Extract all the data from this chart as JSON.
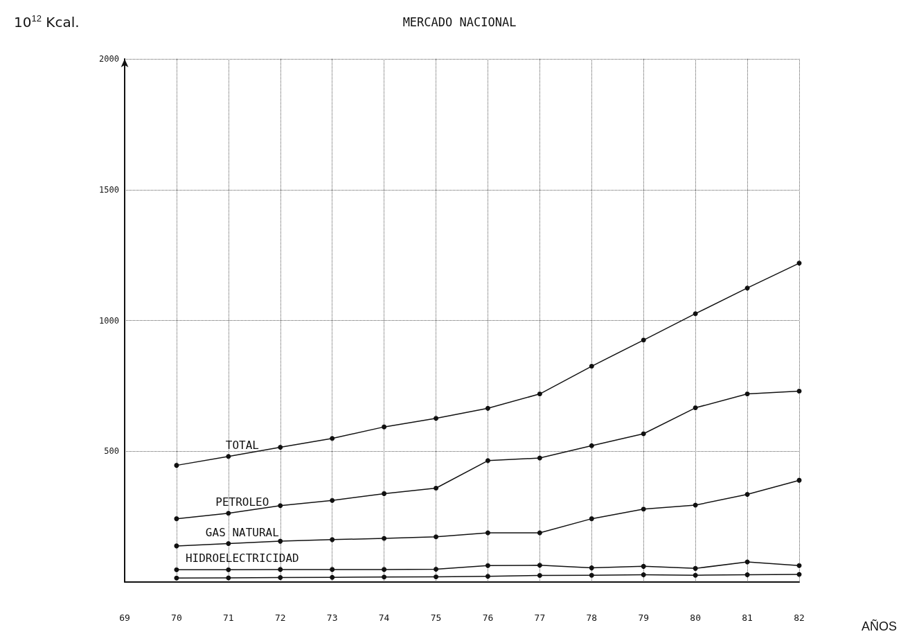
{
  "chart_data": {
    "type": "line",
    "title": "MERCADO NACIONAL",
    "ylabel": "10$^{12}$ Kcal.",
    "xlabel": "AÑOS",
    "categories": [
      "69",
      "70",
      "71",
      "72",
      "73",
      "74",
      "75",
      "76",
      "77",
      "78",
      "79",
      "80",
      "81",
      "82"
    ],
    "series": [
      {
        "name": "TOTAL",
        "color": "#111111",
        "values": [
          null,
          446,
          480,
          515,
          549,
          593,
          626,
          664,
          719,
          825,
          925,
          1026,
          1124,
          1219
        ]
      },
      {
        "name": "PETROLEO",
        "color": "#111111",
        "values": [
          null,
          242,
          263,
          292,
          312,
          338,
          359,
          464,
          474,
          521,
          567,
          666,
          719,
          730
        ]
      },
      {
        "name": "GAS NATURAL",
        "color": "#111111",
        "values": [
          null,
          138,
          147,
          156,
          162,
          167,
          173,
          188,
          188,
          242,
          279,
          294,
          335,
          389
        ]
      },
      {
        "name": "HIDROELECTRICIDAD",
        "color": "#111111",
        "values": [
          null,
          47,
          47,
          48,
          48,
          48,
          49,
          63,
          64,
          54,
          60,
          52,
          77,
          63
        ]
      },
      {
        "color": "#111111",
        "values": [
          null,
          15,
          16,
          17,
          18,
          19,
          20,
          22,
          25,
          26,
          28,
          26,
          28,
          29
        ]
      }
    ],
    "ylim": [
      0,
      2000
    ],
    "yticks": [
      {
        "value": 0,
        "label": null
      },
      500,
      1000,
      1500,
      2000
    ],
    "grid": true,
    "legend": false,
    "marker": "circle"
  }
}
